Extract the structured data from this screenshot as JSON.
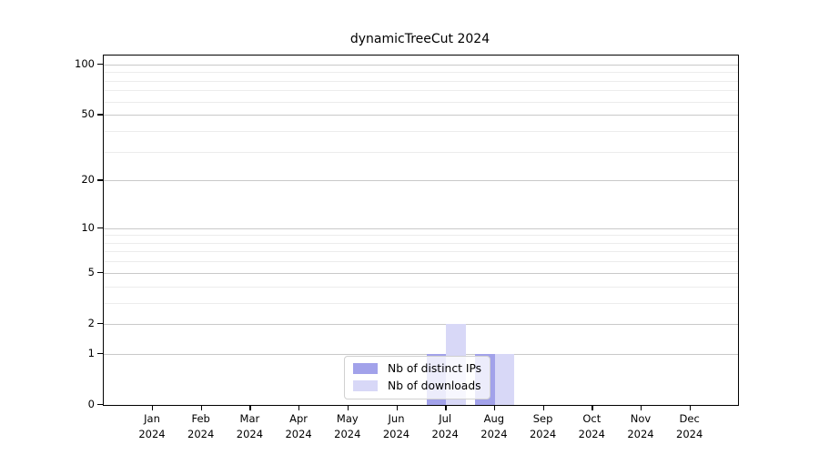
{
  "chart_data": {
    "type": "bar",
    "title": "dynamicTreeCut 2024",
    "categories": [
      "Jan",
      "Feb",
      "Mar",
      "Apr",
      "May",
      "Jun",
      "Jul",
      "Aug",
      "Sep",
      "Oct",
      "Nov",
      "Dec"
    ],
    "year": "2024",
    "series": [
      {
        "name": "Nb of distinct IPs",
        "color": "#a2a2ea",
        "values": [
          0,
          0,
          0,
          0,
          0,
          0,
          1,
          1,
          0,
          0,
          0,
          0
        ]
      },
      {
        "name": "Nb of downloads",
        "color": "#d8d8f7",
        "values": [
          0,
          0,
          0,
          0,
          0,
          0,
          2,
          1,
          0,
          0,
          0,
          0
        ]
      }
    ],
    "xlabel": "",
    "ylabel": "",
    "y_axis": {
      "scale": "log1p",
      "tick_labels": [
        "0",
        "1",
        "2",
        "5",
        "10",
        "20",
        "50",
        "100"
      ],
      "major_ticks": [
        0,
        1,
        2,
        5,
        10,
        20,
        50,
        100
      ],
      "minor_gridlines": [
        3,
        4,
        6,
        7,
        8,
        9,
        30,
        40,
        60,
        70,
        80,
        90
      ],
      "ylim": [
        0,
        113
      ]
    },
    "grid": true,
    "legend_position": "bottom-center"
  }
}
